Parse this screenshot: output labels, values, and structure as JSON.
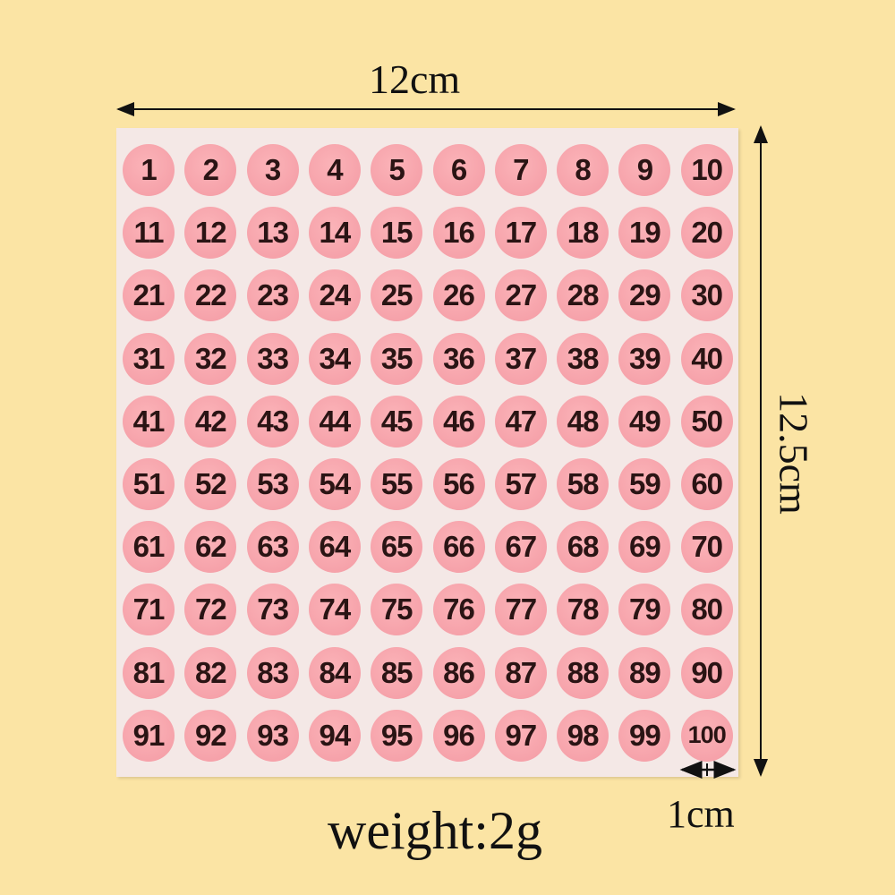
{
  "dimensions": {
    "width_label": "12cm",
    "height_label": "12.5cm",
    "sticker_label": "1cm",
    "weight_label": "weight:2g"
  },
  "colors": {
    "background": "#fbe4a4",
    "sheet": "#f4e8e6",
    "sticker": "#f6a2aa",
    "number_text": "#2a1414"
  },
  "stickers": {
    "rows": 10,
    "columns": 10,
    "numbers": [
      "1",
      "2",
      "3",
      "4",
      "5",
      "6",
      "7",
      "8",
      "9",
      "10",
      "11",
      "12",
      "13",
      "14",
      "15",
      "16",
      "17",
      "18",
      "19",
      "20",
      "21",
      "22",
      "23",
      "24",
      "25",
      "26",
      "27",
      "28",
      "29",
      "30",
      "31",
      "32",
      "33",
      "34",
      "35",
      "36",
      "37",
      "38",
      "39",
      "40",
      "41",
      "42",
      "43",
      "44",
      "45",
      "46",
      "47",
      "48",
      "49",
      "50",
      "51",
      "52",
      "53",
      "54",
      "55",
      "56",
      "57",
      "58",
      "59",
      "60",
      "61",
      "62",
      "63",
      "64",
      "65",
      "66",
      "67",
      "68",
      "69",
      "70",
      "71",
      "72",
      "73",
      "74",
      "75",
      "76",
      "77",
      "78",
      "79",
      "80",
      "81",
      "82",
      "83",
      "84",
      "85",
      "86",
      "87",
      "88",
      "89",
      "90",
      "91",
      "92",
      "93",
      "94",
      "95",
      "96",
      "97",
      "98",
      "99",
      "100"
    ]
  }
}
